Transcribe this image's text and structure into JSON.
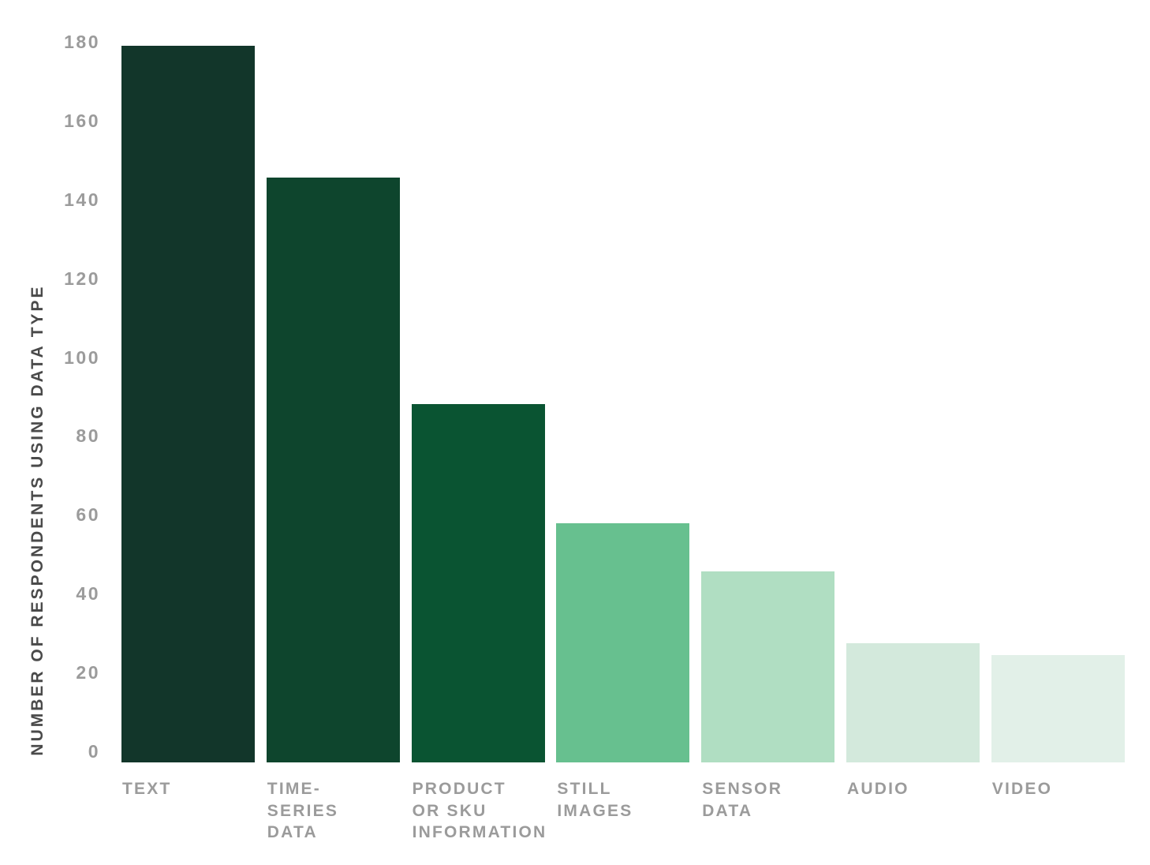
{
  "chart_data": {
    "type": "bar",
    "title": "",
    "xlabel": "",
    "ylabel": "NUMBER OF RESPONDENTS USING DATA TYPE",
    "categories": [
      "TEXT",
      "TIME-SERIES DATA",
      "PRODUCT OR SKU INFORMATION",
      "STILL IMAGES",
      "SENSOR DATA",
      "AUDIO",
      "VIDEO"
    ],
    "category_lines": [
      [
        "TEXT"
      ],
      [
        "TIME-",
        "SERIES",
        "DATA"
      ],
      [
        "PRODUCT",
        "OR SKU",
        "INFORMATION"
      ],
      [
        "STILL",
        "IMAGES"
      ],
      [
        "SENSOR",
        "DATA"
      ],
      [
        "AUDIO"
      ],
      [
        "VIDEO"
      ]
    ],
    "values": [
      180,
      147,
      90,
      60,
      48,
      30,
      27
    ],
    "ylim": [
      0,
      180
    ],
    "yticks": [
      0,
      20,
      40,
      60,
      80,
      100,
      120,
      140,
      160,
      180
    ],
    "grid": false,
    "legend": false,
    "bar_colors": [
      "#12362a",
      "#0e452d",
      "#0a5432",
      "#67c08f",
      "#b0dec2",
      "#d3e9dc",
      "#e2f0e8"
    ],
    "tick_label_color": "#9b9b9b",
    "category_label_color": "#9b9b9b",
    "axis_title_color": "#4a4a4a",
    "background_color": "#ffffff"
  }
}
